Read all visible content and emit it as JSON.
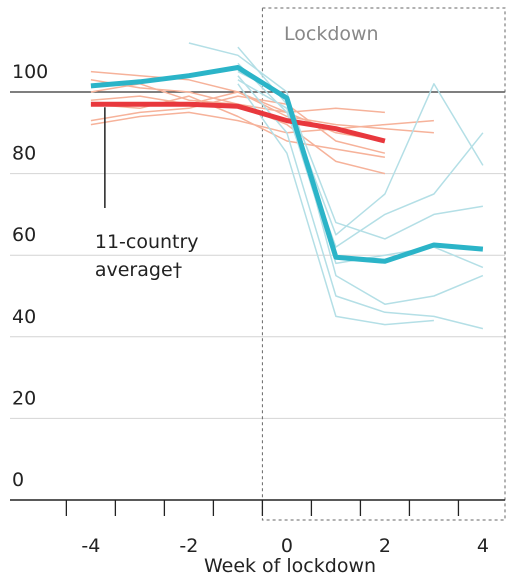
{
  "chart_data": {
    "type": "line",
    "annotation_lines": [
      "11-country",
      "average†"
    ],
    "annotation_x": -4,
    "lockdown_label": "Lockdown",
    "lockdown_start": -0.5,
    "x_label": "Week of lockdown",
    "x": [
      -4,
      -3,
      -2,
      -1,
      0,
      1,
      2,
      3,
      4
    ],
    "xlim": [
      -5.65,
      4.45
    ],
    "xticks": [
      -4,
      -2,
      0,
      2,
      4
    ],
    "xminor_ticks": [
      -4.5,
      -3.5,
      -2.5,
      -1.5,
      -0.5,
      0.5,
      1.5,
      2.5,
      3.5
    ],
    "ylim": [
      0,
      120
    ],
    "yticks": [
      0,
      20,
      40,
      60,
      80,
      100
    ],
    "reference_y": 100,
    "grid": true,
    "series": [
      {
        "color": "#f6b29a",
        "width": 1.5,
        "values": [
          105,
          104,
          103,
          100,
          95,
          90,
          88,
          null,
          null
        ]
      },
      {
        "color": "#f6b29a",
        "width": 1.5,
        "values": [
          98,
          99,
          97,
          100,
          94,
          92,
          91,
          90,
          null
        ]
      },
      {
        "color": "#f6b29a",
        "width": 1.5,
        "values": [
          93,
          95,
          96,
          99,
          97,
          88,
          85,
          null,
          null
        ]
      },
      {
        "color": "#f6b29a",
        "width": 1.5,
        "values": [
          100,
          102,
          98,
          97,
          92,
          83,
          80,
          null,
          null
        ]
      },
      {
        "color": "#f6b29a",
        "width": 1.5,
        "values": [
          92,
          94,
          95,
          93,
          90,
          91,
          92,
          93,
          null
        ]
      },
      {
        "color": "#f6b29a",
        "width": 1.5,
        "values": [
          97,
          96,
          99,
          94,
          88,
          86,
          84,
          null,
          null
        ]
      },
      {
        "color": "#f6b29a",
        "width": 1.5,
        "values": [
          103,
          101,
          100,
          97,
          95,
          96,
          95,
          null,
          null
        ]
      },
      {
        "color": "#b4dfe6",
        "width": 1.5,
        "values": [
          null,
          null,
          112,
          109,
          100,
          55,
          48,
          50,
          55
        ]
      },
      {
        "color": "#b4dfe6",
        "width": 1.5,
        "values": [
          null,
          null,
          null,
          111,
          97,
          65,
          75,
          102,
          82
        ]
      },
      {
        "color": "#b4dfe6",
        "width": 1.5,
        "values": [
          null,
          null,
          null,
          105,
          99,
          68,
          64,
          70,
          72
        ]
      },
      {
        "color": "#b4dfe6",
        "width": 1.5,
        "values": [
          null,
          null,
          null,
          104,
          90,
          50,
          46,
          45,
          42
        ]
      },
      {
        "color": "#b4dfe6",
        "width": 1.5,
        "values": [
          null,
          null,
          null,
          103,
          96,
          58,
          60,
          62,
          57
        ]
      },
      {
        "color": "#b4dfe6",
        "width": 1.5,
        "values": [
          null,
          null,
          null,
          107,
          95,
          62,
          70,
          75,
          90
        ]
      },
      {
        "color": "#b4dfe6",
        "width": 1.5,
        "values": [
          null,
          null,
          null,
          102,
          85,
          45,
          43,
          44,
          null
        ]
      },
      {
        "color": "#e8383d",
        "width": 5,
        "values": [
          97,
          97,
          97,
          96.5,
          93,
          91,
          88,
          null,
          null
        ]
      },
      {
        "color": "#2bb4c8",
        "width": 5,
        "values": [
          101.5,
          102.5,
          104,
          106,
          98.5,
          59.5,
          58.5,
          62.5,
          61.5
        ]
      }
    ]
  }
}
